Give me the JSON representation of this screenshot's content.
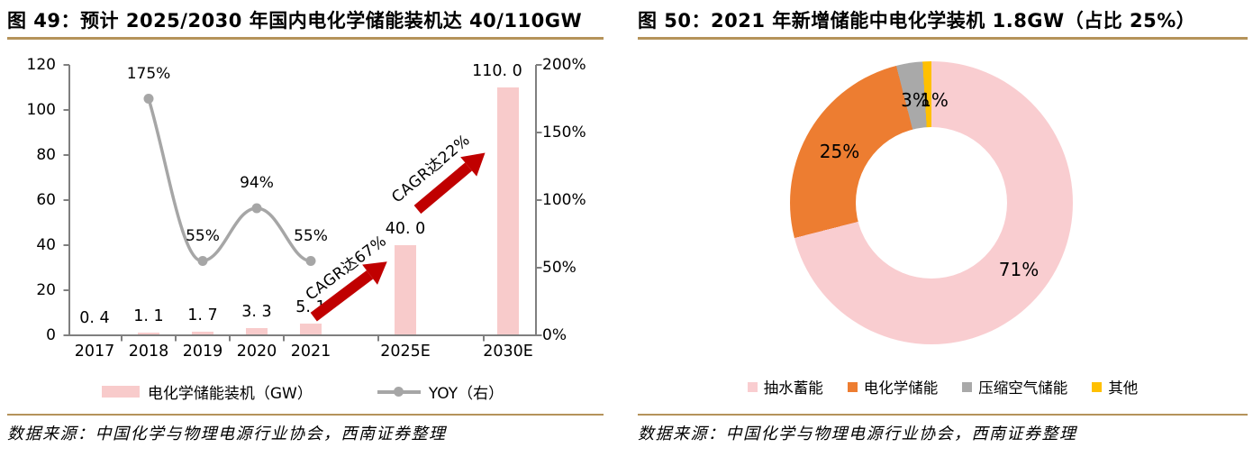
{
  "colors": {
    "bar_pink": "#F8CBCB",
    "line_gray": "#A6A6A6",
    "arrow_red": "#C00000",
    "rule_gold": "#B5935A",
    "axis_gray": "#7F7F7F",
    "pie_pink": "#F9CDD0",
    "pie_orange": "#ED7D31",
    "pie_gray": "#A9A9A9",
    "pie_yellow": "#FFC000"
  },
  "figure49": {
    "title": "图 49：预计 2025/2030 年国内电化学储能装机达 40/110GW",
    "y_left_ticks": [
      "120",
      "100",
      "80",
      "60",
      "40",
      "20",
      "0"
    ],
    "y_right_ticks": [
      "200%",
      "150%",
      "100%",
      "50%",
      "0%"
    ],
    "x_labels": [
      "2017",
      "2018",
      "2019",
      "2020",
      "2021",
      "2025E",
      "2030E"
    ],
    "bar_labels": [
      "0. 4",
      "1. 1",
      "1. 7",
      "3. 3",
      "5. 1",
      "40. 0",
      "110. 0"
    ],
    "yoy_labels": [
      "175%",
      "55%",
      "94%",
      "55%"
    ],
    "annotation_cagr_2025": "CAGR达67%",
    "annotation_cagr_2030": "CAGR达22%",
    "legend": [
      {
        "label": "电化学储能装机（GW）",
        "swatch": "pink-bar"
      },
      {
        "label": "YOY（右）",
        "swatch": "gray-line-dot"
      }
    ],
    "source": "数据来源：中国化学与物理电源行业协会，西南证券整理"
  },
  "figure50": {
    "title": "图 50：2021 年新增储能中电化学装机 1.8GW（占比 25%）",
    "slice_labels": [
      "71%",
      "25%",
      "3%",
      "1%"
    ],
    "legend": [
      "抽水蓄能",
      "电化学储能",
      "压缩空气储能",
      "其他"
    ],
    "source": "数据来源：中国化学与物理电源行业协会，西南证券整理"
  },
  "chart_data": [
    {
      "type": "bar",
      "title": "预计 2025/2030 年国内电化学储能装机达 40/110GW",
      "categories": [
        "2017",
        "2018",
        "2019",
        "2020",
        "2021",
        "2025E",
        "2030E"
      ],
      "series": [
        {
          "name": "电化学储能装机（GW）",
          "type": "bar",
          "axis": "left",
          "values": [
            0.4,
            1.1,
            1.7,
            3.3,
            5.1,
            40.0,
            110.0
          ]
        },
        {
          "name": "YOY（右）",
          "type": "line",
          "axis": "right",
          "values_pct": [
            null,
            175,
            55,
            94,
            55,
            null,
            null
          ]
        }
      ],
      "left_axis": {
        "label": "",
        "range": [
          0,
          120
        ],
        "ticks": [
          0,
          20,
          40,
          60,
          80,
          100,
          120
        ]
      },
      "right_axis": {
        "label": "",
        "range_pct": [
          0,
          200
        ],
        "ticks_pct": [
          0,
          50,
          100,
          150,
          200
        ]
      },
      "annotations": [
        "CAGR达67%",
        "CAGR达22%"
      ],
      "legend_position": "bottom",
      "grid": false
    },
    {
      "type": "pie",
      "donut": true,
      "title": "2021 年新增储能中电化学装机 1.8GW（占比 25%）",
      "labels": [
        "抽水蓄能",
        "电化学储能",
        "压缩空气储能",
        "其他"
      ],
      "values_pct": [
        71,
        25,
        3,
        1
      ],
      "colors": [
        "#F9CDD0",
        "#ED7D31",
        "#A9A9A9",
        "#FFC000"
      ],
      "start_angle_deg": 0,
      "direction": "clockwise",
      "legend_position": "bottom"
    }
  ]
}
